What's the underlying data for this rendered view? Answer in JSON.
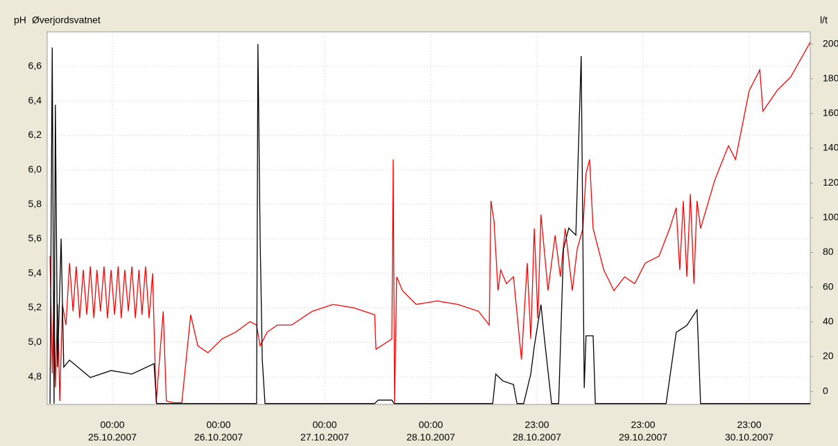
{
  "chart_data": {
    "type": "line",
    "title": "Øverjordsvatnet",
    "ylabel": "pH",
    "y2label": "l/t",
    "xlim": [
      -14.75,
      157.8
    ],
    "xticks": [
      {
        "value": 0,
        "label": "00:00\n25.10.2007"
      },
      {
        "value": 24,
        "label": "00:00\n26.10.2007"
      },
      {
        "value": 48,
        "label": "00:00\n27.10.2007"
      },
      {
        "value": 72,
        "label": "00:00\n28.10.2007"
      },
      {
        "value": 96,
        "label": "23:00\n28.10.2007"
      },
      {
        "value": 120,
        "label": "23:00\n29.10.2007"
      },
      {
        "value": 144,
        "label": "23:00\n30.10.2007"
      }
    ],
    "ylim": [
      4.64,
      6.8
    ],
    "yticks": [
      {
        "value": 4.8,
        "label": "4,8"
      },
      {
        "value": 5.0,
        "label": "5,0"
      },
      {
        "value": 5.2,
        "label": "5,2"
      },
      {
        "value": 5.4,
        "label": "5,4"
      },
      {
        "value": 5.6,
        "label": "5,6"
      },
      {
        "value": 5.8,
        "label": "5,8"
      },
      {
        "value": 6.0,
        "label": "6,0"
      },
      {
        "value": 6.2,
        "label": "6,2"
      },
      {
        "value": 6.4,
        "label": "6,4"
      },
      {
        "value": 6.6,
        "label": "6,6"
      }
    ],
    "y2lim": [
      -7.5,
      207
    ],
    "y2ticks": [
      0,
      20,
      40,
      60,
      80,
      100,
      120,
      140,
      160,
      180,
      200
    ],
    "grid": true,
    "series": [
      {
        "color": "#ff0000",
        "x": [
          -14.1,
          -13.6,
          -13.2,
          -12.9,
          -12.4,
          -11.9,
          -11.3,
          -10.5,
          -9.7,
          -8.9,
          -8.2,
          -7.4,
          -6.6,
          -5.8,
          -5.0,
          -4.2,
          -3.5,
          -2.7,
          -1.9,
          -1.1,
          -0.3,
          0.5,
          1.3,
          2.0,
          2.8,
          3.6,
          4.4,
          5.2,
          6.0,
          6.7,
          7.5,
          8.3,
          9.1,
          9.9,
          11.5,
          12.2,
          13.8,
          15.7,
          17.7,
          19.3,
          21.6,
          24.8,
          27.9,
          31.1,
          32.6,
          33.4,
          35.0,
          37.3,
          40.5,
          45.2,
          49.9,
          54.6,
          59.3,
          59.6,
          63.2,
          63.5,
          63.8,
          64.3,
          65.6,
          68.7,
          73.4,
          78.1,
          82.8,
          85.2,
          85.6,
          86.3,
          87.2,
          87.8,
          89.1,
          90.7,
          92.5,
          93.8,
          94.6,
          95.4,
          96.2,
          96.9,
          98.5,
          100.1,
          101.3,
          102.4,
          104.0,
          105.1,
          106.4,
          107.1,
          107.9,
          108.7,
          111.1,
          113.4,
          115.8,
          118.1,
          120.5,
          123.6,
          126.0,
          127.5,
          128.3,
          129.1,
          129.9,
          130.7,
          131.5,
          132.2,
          133.0,
          136.2,
          139.3,
          140.9,
          144.0,
          146.4,
          147.1,
          150.3,
          153.4,
          157.8
        ],
        "values": [
          5.5,
          4.82,
          5.3,
          4.74,
          5.22,
          4.66,
          5.22,
          5.1,
          5.46,
          5.18,
          5.44,
          5.14,
          5.42,
          5.16,
          5.44,
          5.14,
          5.42,
          5.18,
          5.44,
          5.14,
          5.42,
          5.16,
          5.44,
          5.14,
          5.42,
          5.18,
          5.44,
          5.14,
          5.42,
          5.16,
          5.44,
          5.14,
          5.4,
          4.65,
          5.18,
          4.66,
          4.65,
          4.65,
          5.16,
          4.98,
          4.94,
          5.02,
          5.06,
          5.12,
          5.1,
          4.98,
          5.06,
          5.1,
          5.1,
          5.18,
          5.22,
          5.2,
          5.16,
          4.96,
          5.02,
          6.06,
          4.65,
          5.38,
          5.3,
          5.22,
          5.24,
          5.22,
          5.18,
          5.1,
          5.82,
          5.7,
          5.3,
          5.42,
          5.34,
          5.38,
          4.9,
          5.46,
          5.02,
          5.66,
          5.14,
          5.74,
          5.3,
          5.62,
          5.38,
          5.66,
          5.3,
          5.54,
          5.66,
          5.98,
          6.06,
          5.66,
          5.42,
          5.3,
          5.38,
          5.34,
          5.46,
          5.5,
          5.66,
          5.78,
          5.42,
          5.82,
          5.38,
          5.86,
          5.34,
          5.82,
          5.66,
          5.94,
          6.14,
          6.06,
          6.46,
          6.58,
          6.34,
          6.46,
          6.54,
          6.74
        ]
      },
      {
        "color": "#000000",
        "axis": "y2",
        "x": [
          -14.1,
          -13.6,
          -13.2,
          -12.9,
          -12.4,
          -11.6,
          -11.0,
          -9.7,
          -5.0,
          -0.3,
          4.4,
          9.4,
          10.0,
          32.6,
          32.9,
          33.4,
          33.9,
          34.5,
          59.3,
          60.1,
          63.2,
          63.7,
          86.0,
          86.7,
          88.3,
          90.7,
          91.5,
          93.0,
          94.6,
          95.4,
          96.9,
          97.7,
          99.3,
          100.9,
          102.0,
          103.2,
          104.8,
          106.0,
          106.7,
          107.1,
          108.7,
          109.2,
          125.2,
          127.5,
          129.9,
          132.2,
          133.0,
          157.8
        ],
        "values": [
          -7,
          198,
          -7,
          165,
          14,
          88,
          14,
          18,
          8,
          12,
          10,
          16,
          -7,
          -7,
          200,
          88,
          18,
          -7,
          -7,
          -5,
          -5,
          -7,
          -7,
          10,
          6,
          4,
          -7,
          -7,
          10,
          26,
          50,
          30,
          -7,
          -7,
          82,
          94,
          90,
          193,
          2,
          32,
          32,
          -7,
          -7,
          34,
          38,
          47,
          -7,
          -7
        ]
      }
    ]
  }
}
